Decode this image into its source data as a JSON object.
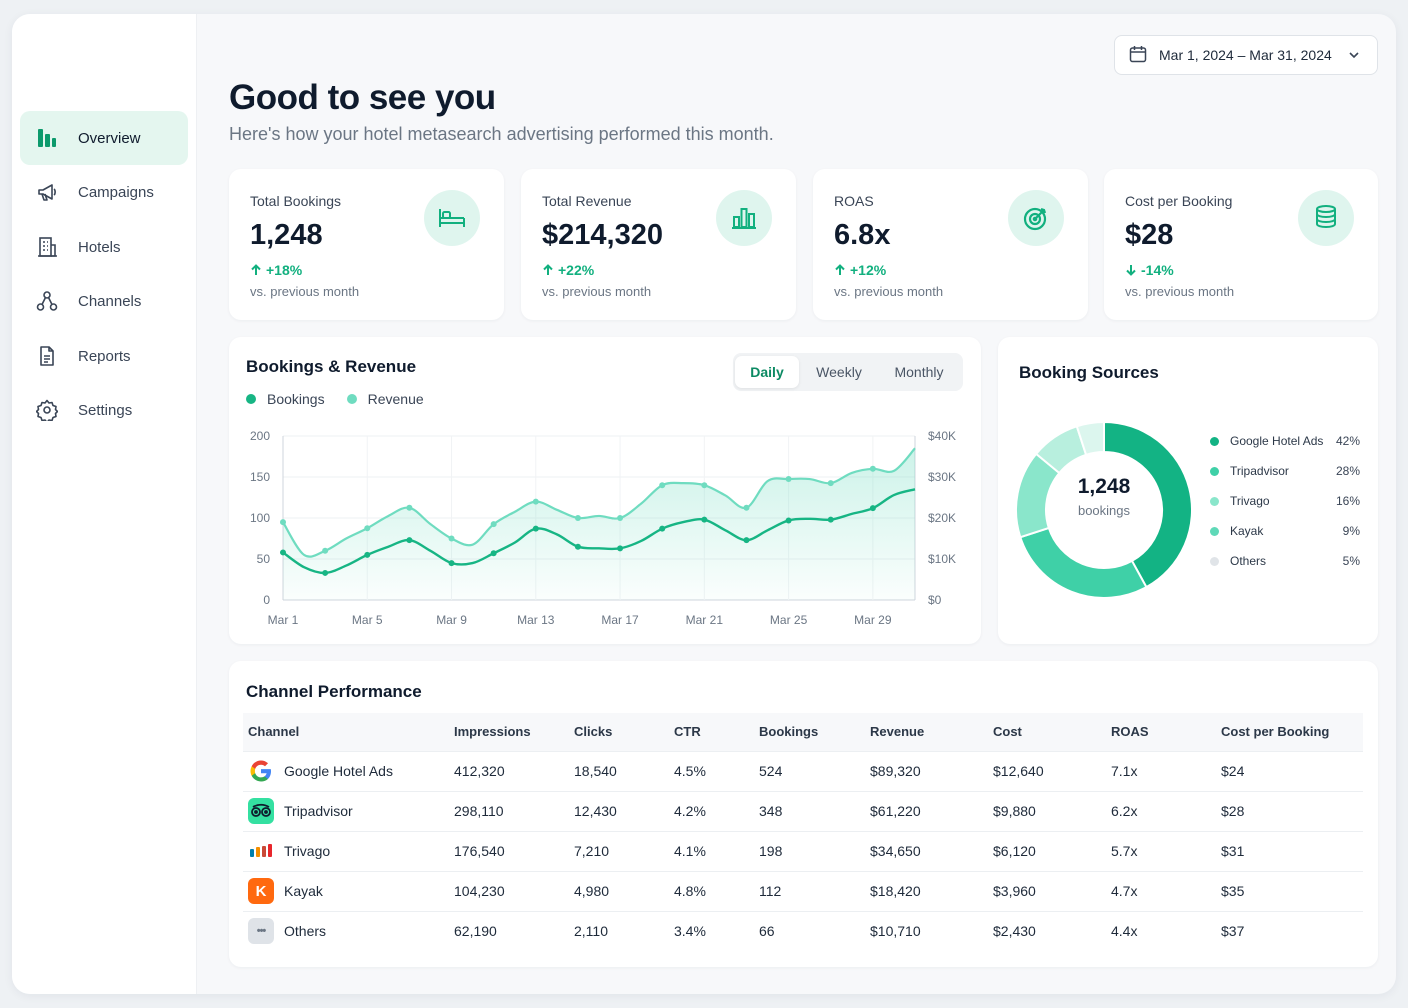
{
  "sidebar": {
    "items": [
      {
        "label": "Overview",
        "icon": "bar-chart-icon",
        "active": true
      },
      {
        "label": "Campaigns",
        "icon": "megaphone-icon",
        "active": false
      },
      {
        "label": "Hotels",
        "icon": "building-icon",
        "active": false
      },
      {
        "label": "Channels",
        "icon": "network-icon",
        "active": false
      },
      {
        "label": "Reports",
        "icon": "document-icon",
        "active": false
      },
      {
        "label": "Settings",
        "icon": "gear-icon",
        "active": false
      }
    ]
  },
  "header": {
    "date_range": "Mar 1, 2024 – Mar 31, 2024",
    "title": "Good to see you",
    "subtitle": "Here's how your hotel metasearch advertising performed this month."
  },
  "kpis": [
    {
      "label": "Total Bookings",
      "value": "1,248",
      "delta": "+18%",
      "direction": "up",
      "note": "vs. previous month",
      "icon": "bed-icon"
    },
    {
      "label": "Total Revenue",
      "value": "$214,320",
      "delta": "+22%",
      "direction": "up",
      "note": "vs. previous month",
      "icon": "bar-chart-icon"
    },
    {
      "label": "ROAS",
      "value": "6.8x",
      "delta": "+12%",
      "direction": "up",
      "note": "vs. previous month",
      "icon": "target-icon"
    },
    {
      "label": "Cost per Booking",
      "value": "$28",
      "delta": "-14%",
      "direction": "down",
      "note": "vs. previous month",
      "icon": "coins-icon"
    }
  ],
  "trend": {
    "title": "Bookings & Revenue",
    "tabs": [
      "Daily",
      "Weekly",
      "Monthly"
    ],
    "active_tab": "Daily",
    "legend": [
      "Bookings",
      "Revenue"
    ]
  },
  "sources": {
    "title": "Booking Sources",
    "center_value": "1,248",
    "center_label": "bookings"
  },
  "performance": {
    "title": "Channel Performance",
    "columns": [
      "Channel",
      "Impressions",
      "Clicks",
      "CTR",
      "Bookings",
      "Revenue",
      "Cost",
      "ROAS",
      "Cost per Booking"
    ],
    "rows": [
      {
        "channel": "Google Hotel Ads",
        "logo": "google-logo-icon",
        "impressions": "412,320",
        "clicks": "18,540",
        "ctr": "4.5%",
        "bookings": "524",
        "revenue": "$89,320",
        "cost": "$12,640",
        "roas": "7.1x",
        "cpb": "$24"
      },
      {
        "channel": "Tripadvisor",
        "logo": "tripadvisor-logo-icon",
        "impressions": "298,110",
        "clicks": "12,430",
        "ctr": "4.2%",
        "bookings": "348",
        "revenue": "$61,220",
        "cost": "$9,880",
        "roas": "6.2x",
        "cpb": "$28"
      },
      {
        "channel": "Trivago",
        "logo": "trivago-logo-icon",
        "impressions": "176,540",
        "clicks": "7,210",
        "ctr": "4.1%",
        "bookings": "198",
        "revenue": "$34,650",
        "cost": "$6,120",
        "roas": "5.7x",
        "cpb": "$31"
      },
      {
        "channel": "Kayak",
        "logo": "kayak-logo-icon",
        "logo_letter": "K",
        "impressions": "104,230",
        "clicks": "4,980",
        "ctr": "4.8%",
        "bookings": "112",
        "revenue": "$18,420",
        "cost": "$3,960",
        "roas": "4.7x",
        "cpb": "$35"
      },
      {
        "channel": "Others",
        "logo": "more-dots-icon",
        "logo_letter": "•••",
        "impressions": "62,190",
        "clicks": "2,110",
        "ctr": "3.4%",
        "bookings": "66",
        "revenue": "$10,710",
        "cost": "$2,430",
        "roas": "4.4x",
        "cpb": "$37"
      }
    ]
  },
  "colors": {
    "accent": "#12b07f",
    "accent_dark": "#0c8a63",
    "bookings_line": "#17b584",
    "revenue_line": "#6fdcc0",
    "negative": "#12b07f"
  },
  "chart_data": [
    {
      "type": "line",
      "title": "Bookings & Revenue",
      "x": [
        "Mar 1",
        "Mar 2",
        "Mar 3",
        "Mar 4",
        "Mar 5",
        "Mar 6",
        "Mar 7",
        "Mar 8",
        "Mar 9",
        "Mar 10",
        "Mar 11",
        "Mar 12",
        "Mar 13",
        "Mar 14",
        "Mar 15",
        "Mar 16",
        "Mar 17",
        "Mar 18",
        "Mar 19",
        "Mar 20",
        "Mar 21",
        "Mar 22",
        "Mar 23",
        "Mar 24",
        "Mar 25",
        "Mar 26",
        "Mar 27",
        "Mar 28",
        "Mar 29",
        "Mar 30",
        "Mar 31"
      ],
      "x_tick_labels": [
        "Mar 1",
        "Mar 5",
        "Mar 9",
        "Mar 13",
        "Mar 17",
        "Mar 21",
        "Mar 25",
        "Mar 29"
      ],
      "series": [
        {
          "name": "Bookings",
          "axis": "left",
          "values": [
            58,
            40,
            33,
            42,
            55,
            65,
            73,
            60,
            45,
            45,
            57,
            70,
            87,
            80,
            65,
            63,
            63,
            72,
            87,
            95,
            98,
            85,
            73,
            85,
            97,
            99,
            98,
            105,
            112,
            128,
            135
          ]
        },
        {
          "name": "Revenue",
          "axis": "right",
          "values": [
            19000,
            11000,
            12000,
            15000,
            17500,
            20500,
            22500,
            18500,
            15000,
            13500,
            18500,
            21500,
            24000,
            22000,
            20000,
            20500,
            20000,
            23500,
            28000,
            28500,
            28000,
            25500,
            22500,
            29000,
            29500,
            29500,
            28500,
            31000,
            32000,
            31500,
            37000
          ]
        }
      ],
      "ylim_left": [
        0,
        200
      ],
      "yticks_left": [
        0,
        50,
        100,
        150,
        200
      ],
      "ylim_right": [
        0,
        40000
      ],
      "yticks_right": [
        "$0",
        "$10K",
        "$20K",
        "$30K",
        "$40K"
      ],
      "grid": true,
      "legend": "top-left"
    },
    {
      "type": "pie",
      "title": "Booking Sources",
      "donut": true,
      "labels": [
        "Google Hotel Ads",
        "Tripadvisor",
        "Trivago",
        "Kayak",
        "Others"
      ],
      "values": [
        42,
        28,
        16,
        9,
        5
      ],
      "value_labels": [
        "42%",
        "28%",
        "16%",
        "9%",
        "5%"
      ],
      "colors": [
        "#13b384",
        "#3fd0a7",
        "#8ae6cb",
        "#b8efde",
        "#dcf6ee"
      ],
      "legend_colors": [
        "#13b384",
        "#3fd0a7",
        "#8ae6cb",
        "#5fd9b8",
        "#e0e4e8"
      ],
      "legend": "right"
    }
  ]
}
